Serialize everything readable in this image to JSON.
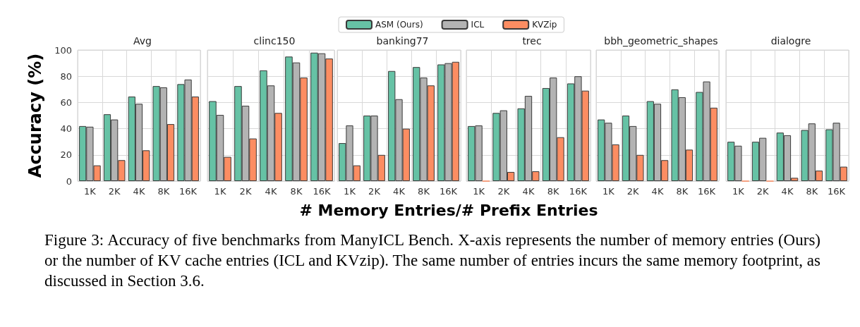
{
  "chart_data": [
    {
      "type": "bar",
      "title": "Avg",
      "ylabel": "Accuracy (%)",
      "annotations": [
        "Figure 3: Accuracy of five benchmarks from ManyICL Bench. X-axis represents the number of memory entries (Ours) or the number of KV cache entries (ICL and KVzip). The same number of entries incurs the same memory footprint, as discussed in Section 3.6."
      ],
      "categories": [
        "1K",
        "2K",
        "4K",
        "8K",
        "16K"
      ],
      "ylim": [
        0,
        100
      ],
      "yticks": [
        0,
        20,
        40,
        60,
        80,
        100
      ],
      "grid": true,
      "legend": "top",
      "series": [
        {
          "name": "ASM (Ours)",
          "color": "#66c2a5",
          "values": [
            42,
            51,
            64.5,
            72.5,
            74
          ]
        },
        {
          "name": "ICL",
          "color": "#b3b3b3",
          "values": [
            41.5,
            47,
            59,
            71.5,
            77.5
          ]
        },
        {
          "name": "KVZip",
          "color": "#fc8d62",
          "values": [
            12,
            16,
            23.5,
            43.5,
            64.5
          ]
        }
      ]
    },
    {
      "type": "bar",
      "title": "clinc150",
      "categories": [
        "1K",
        "2K",
        "4K",
        "8K",
        "16K"
      ],
      "ylim": [
        0,
        100
      ],
      "yticks": [
        0,
        20,
        40,
        60,
        80,
        100
      ],
      "grid": true,
      "tick_labels": "x",
      "series": [
        {
          "color": "#66c2a5",
          "values": [
            61,
            72.5,
            84.5,
            95,
            98
          ]
        },
        {
          "color": "#b3b3b3",
          "values": [
            50.5,
            57.5,
            73,
            90.5,
            97.5
          ]
        },
        {
          "color": "#fc8d62",
          "values": [
            18.5,
            32.5,
            52,
            79,
            93.5
          ]
        }
      ]
    },
    {
      "type": "bar",
      "title": "banking77",
      "xlabel": "# Memory Entries/# Prefix Entries",
      "categories": [
        "1K",
        "2K",
        "4K",
        "8K",
        "16K"
      ],
      "ylim": [
        0,
        100
      ],
      "yticks": [
        0,
        20,
        40,
        60,
        80,
        100
      ],
      "grid": true,
      "tick_labels": "x",
      "series": [
        {
          "color": "#66c2a5",
          "values": [
            29,
            50,
            84,
            87,
            89
          ]
        },
        {
          "color": "#b3b3b3",
          "values": [
            42.5,
            50,
            62.5,
            79,
            90
          ]
        },
        {
          "color": "#fc8d62",
          "values": [
            12,
            20,
            40,
            73,
            91
          ]
        }
      ]
    },
    {
      "type": "bar",
      "title": "trec",
      "categories": [
        "1K",
        "2K",
        "4K",
        "8K",
        "16K"
      ],
      "ylim": [
        0,
        100
      ],
      "yticks": [
        0,
        20,
        40,
        60,
        80,
        100
      ],
      "grid": true,
      "tick_labels": "x",
      "series": [
        {
          "color": "#66c2a5",
          "values": [
            42,
            52,
            55.5,
            71,
            74.5
          ]
        },
        {
          "color": "#b3b3b3",
          "values": [
            42.5,
            54,
            65,
            79,
            80
          ]
        },
        {
          "color": "#fc8d62",
          "values": [
            0,
            7,
            7.5,
            33.5,
            69
          ]
        }
      ]
    },
    {
      "type": "bar",
      "title": "bbh_geometric_shapes",
      "categories": [
        "1K",
        "2K",
        "4K",
        "8K",
        "16K"
      ],
      "ylim": [
        0,
        100
      ],
      "yticks": [
        0,
        20,
        40,
        60,
        80,
        100
      ],
      "grid": true,
      "tick_labels": "x",
      "series": [
        {
          "color": "#66c2a5",
          "values": [
            47,
            50,
            61,
            70,
            68
          ]
        },
        {
          "color": "#b3b3b3",
          "values": [
            44.5,
            42,
            59,
            64,
            76
          ]
        },
        {
          "color": "#fc8d62",
          "values": [
            28,
            20,
            16,
            24,
            56
          ]
        }
      ]
    },
    {
      "type": "bar",
      "title": "dialogre",
      "categories": [
        "1K",
        "2K",
        "4K",
        "8K",
        "16K"
      ],
      "ylim": [
        0,
        100
      ],
      "yticks": [
        0,
        20,
        40,
        60,
        80,
        100
      ],
      "grid": true,
      "tick_labels": "x",
      "series": [
        {
          "color": "#66c2a5",
          "values": [
            30,
            30,
            37,
            39,
            39.5
          ]
        },
        {
          "color": "#b3b3b3",
          "values": [
            27,
            33,
            35,
            44,
            44.5
          ]
        },
        {
          "color": "#fc8d62",
          "values": [
            0,
            0,
            2.5,
            8,
            11
          ]
        }
      ]
    }
  ]
}
